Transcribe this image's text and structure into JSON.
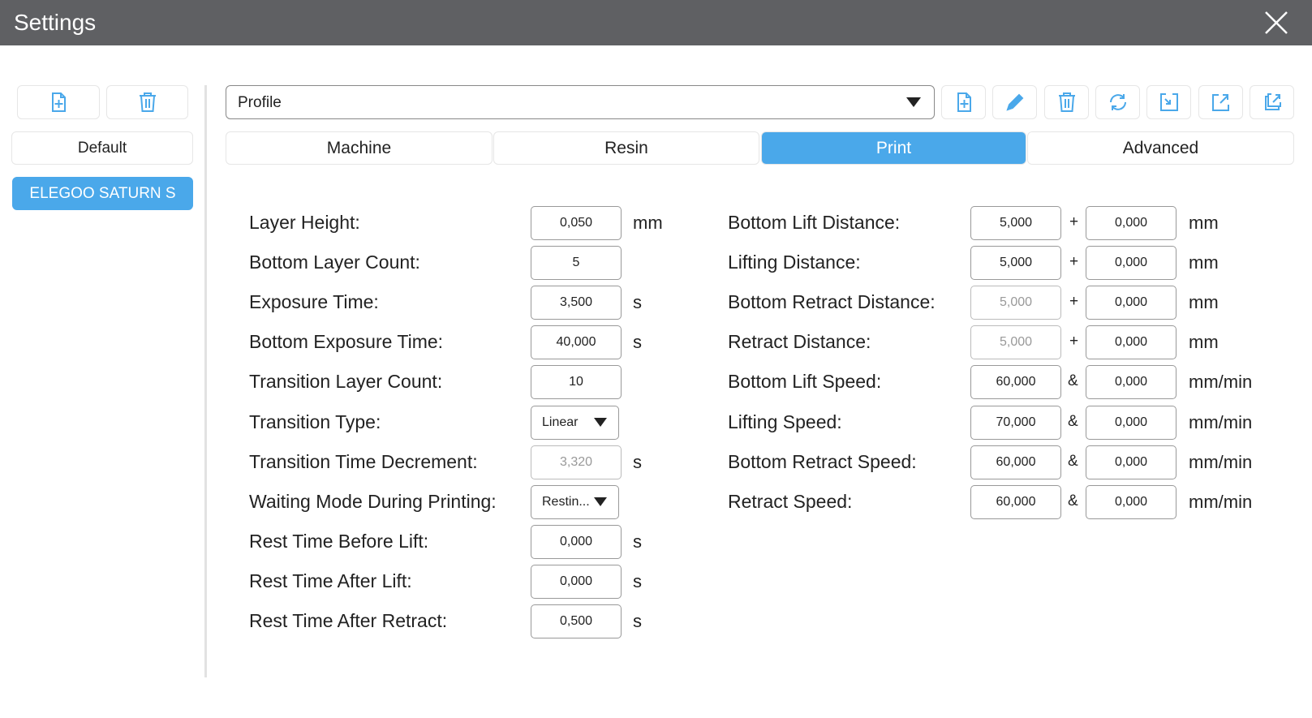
{
  "window": {
    "title": "Settings"
  },
  "sidebar": {
    "items": [
      {
        "label": "Default",
        "selected": false
      },
      {
        "label": "ELEGOO SATURN S",
        "selected": true
      }
    ]
  },
  "profile": {
    "value": "Profile"
  },
  "toolbar_icons": [
    "new-file-icon",
    "edit-icon",
    "delete-icon",
    "refresh-icon",
    "import-icon",
    "export-icon",
    "export-all-icon"
  ],
  "tabs": [
    {
      "label": "Machine"
    },
    {
      "label": "Resin"
    },
    {
      "label": "Print",
      "active": true
    },
    {
      "label": "Advanced"
    }
  ],
  "accent": "#4aa8ea",
  "left_fields": [
    {
      "label": "Layer Height:",
      "value": "0,050",
      "unit": "mm"
    },
    {
      "label": "Bottom Layer Count:",
      "value": "5",
      "unit": ""
    },
    {
      "label": "Exposure Time:",
      "value": "3,500",
      "unit": "s"
    },
    {
      "label": "Bottom Exposure Time:",
      "value": "40,000",
      "unit": "s"
    },
    {
      "label": "Transition Layer Count:",
      "value": "10",
      "unit": ""
    },
    {
      "label": "Transition Type:",
      "value": "Linear",
      "unit": "",
      "dropdown": true
    },
    {
      "label": "Transition Time Decrement:",
      "value": "3,320",
      "unit": "s",
      "disabled": true
    },
    {
      "label": "Waiting Mode During Printing:",
      "value": "Restin...",
      "unit": "",
      "dropdown": true
    },
    {
      "label": "Rest Time Before Lift:",
      "value": "0,000",
      "unit": "s"
    },
    {
      "label": "Rest Time After Lift:",
      "value": "0,000",
      "unit": "s"
    },
    {
      "label": "Rest Time After Retract:",
      "value": "0,500",
      "unit": "s"
    }
  ],
  "right_fields": [
    {
      "label": "Bottom Lift Distance:",
      "value1": "5,000",
      "op": "+",
      "value2": "0,000",
      "unit": "mm"
    },
    {
      "label": "Lifting Distance:",
      "value1": "5,000",
      "op": "+",
      "value2": "0,000",
      "unit": "mm"
    },
    {
      "label": "Bottom Retract Distance:",
      "value1": "5,000",
      "op": "+",
      "value2": "0,000",
      "unit": "mm",
      "disabled1": true
    },
    {
      "label": "Retract Distance:",
      "value1": "5,000",
      "op": "+",
      "value2": "0,000",
      "unit": "mm",
      "disabled1": true
    },
    {
      "label": "Bottom Lift Speed:",
      "value1": "60,000",
      "op": "&",
      "value2": "0,000",
      "unit": "mm/min"
    },
    {
      "label": "Lifting Speed:",
      "value1": "70,000",
      "op": "&",
      "value2": "0,000",
      "unit": "mm/min"
    },
    {
      "label": "Bottom Retract Speed:",
      "value1": "60,000",
      "op": "&",
      "value2": "0,000",
      "unit": "mm/min"
    },
    {
      "label": "Retract Speed:",
      "value1": "60,000",
      "op": "&",
      "value2": "0,000",
      "unit": "mm/min"
    }
  ]
}
